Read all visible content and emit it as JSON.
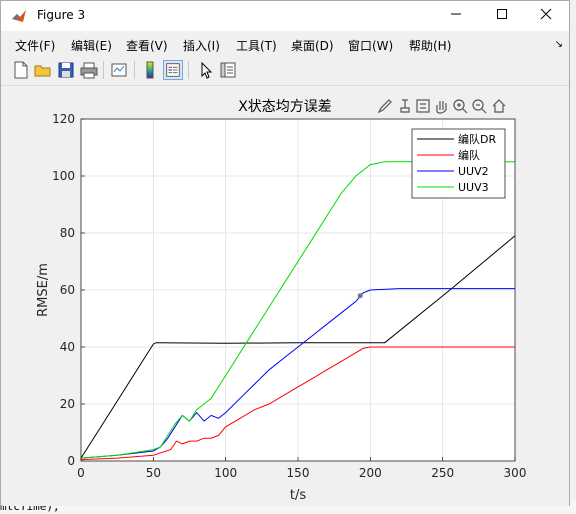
{
  "window": {
    "title": "Figure 3",
    "minimize": "—",
    "maximize": "☐",
    "close": "✕"
  },
  "menu": [
    {
      "label": "文件(F)"
    },
    {
      "label": "编辑(E)"
    },
    {
      "label": "查看(V)"
    },
    {
      "label": "插入(I)"
    },
    {
      "label": "工具(T)"
    },
    {
      "label": "桌面(D)"
    },
    {
      "label": "窗口(W)"
    },
    {
      "label": "帮助(H)"
    }
  ],
  "toolbar": [
    "new-figure-icon",
    "open-folder-icon",
    "save-icon",
    "print-icon",
    "link-icon",
    "colorbar-icon",
    "legend-icon",
    "pointer-icon",
    "property-inspector-icon"
  ],
  "axes_toolbar": [
    "brush-icon",
    "data-tips-icon",
    "rotate-icon",
    "pan-icon",
    "zoom-in-icon",
    "zoom-out-icon",
    "home-icon"
  ],
  "background": {
    "bottom_code": "mtcTime);"
  },
  "chart_data": {
    "type": "line",
    "title": "X状态均方误差",
    "xlabel": "t/s",
    "ylabel": "RMSE/m",
    "xlim": [
      0,
      300
    ],
    "ylim": [
      0,
      120
    ],
    "xticks": [
      0,
      50,
      100,
      150,
      200,
      250,
      300
    ],
    "yticks": [
      0,
      20,
      40,
      60,
      80,
      100,
      120
    ],
    "grid": true,
    "legend_position": "top-right",
    "series": [
      {
        "name": "编队DR",
        "color": "#000000",
        "x": [
          0,
          25,
          50,
          52,
          100,
          150,
          210,
          255,
          300
        ],
        "y": [
          1,
          21,
          41,
          41.5,
          41.3,
          41.5,
          41.5,
          60,
          79
        ]
      },
      {
        "name": "编队",
        "color": "#ff0000",
        "x": [
          0,
          25,
          50,
          62,
          66,
          70,
          75,
          80,
          85,
          90,
          95,
          100,
          110,
          120,
          130,
          140,
          150,
          160,
          170,
          180,
          190,
          195,
          200,
          220,
          250,
          300
        ],
        "y": [
          0.5,
          1,
          2,
          4,
          7,
          6,
          7,
          7,
          8,
          8,
          9,
          12,
          15,
          18,
          20,
          23,
          26,
          29,
          32,
          35,
          38,
          39.5,
          40,
          40,
          40,
          40
        ]
      },
      {
        "name": "UUV2",
        "color": "#0000ff",
        "x": [
          0,
          25,
          50,
          55,
          60,
          65,
          70,
          75,
          80,
          85,
          90,
          95,
          100,
          110,
          120,
          130,
          140,
          150,
          160,
          170,
          180,
          190,
          195,
          200,
          220,
          250,
          300
        ],
        "y": [
          1,
          2,
          3.5,
          5,
          8,
          12,
          16,
          14,
          17,
          14,
          16,
          15,
          17,
          22,
          27,
          32,
          36,
          40,
          44,
          48,
          52,
          56,
          59,
          60,
          60.5,
          60.5,
          60.5
        ]
      },
      {
        "name": "UUV3",
        "color": "#00dd00",
        "x": [
          0,
          25,
          50,
          55,
          60,
          65,
          70,
          75,
          80,
          85,
          90,
          95,
          100,
          110,
          120,
          130,
          140,
          150,
          160,
          170,
          180,
          190,
          200,
          210,
          250,
          300
        ],
        "y": [
          1,
          2,
          4,
          5,
          9,
          13,
          16,
          14,
          18,
          20,
          22,
          26,
          30,
          38,
          46,
          54,
          62,
          70,
          78,
          86,
          94,
          100,
          104,
          105,
          105,
          105
        ]
      }
    ],
    "marker": {
      "x": 193,
      "y": 58
    }
  }
}
